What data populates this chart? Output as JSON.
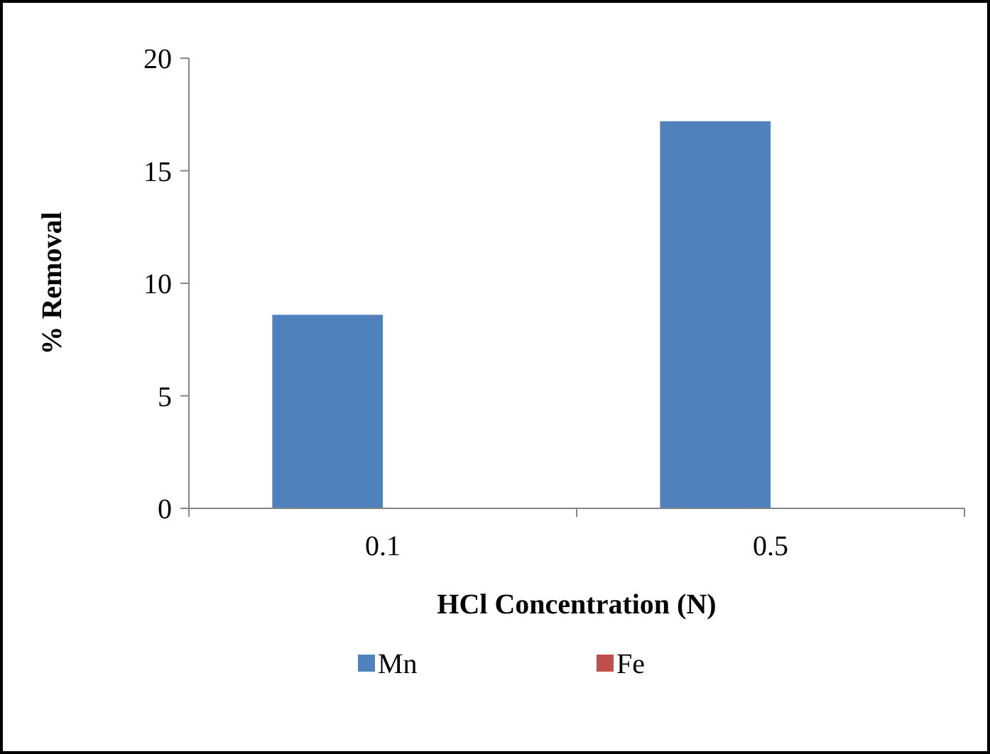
{
  "chart_data": {
    "type": "bar",
    "xlabel": "HCl Concentration (N)",
    "ylabel": "% Removal",
    "categories": [
      "0.1",
      "0.5"
    ],
    "series": [
      {
        "name": "Mn",
        "color": "#4f81bd",
        "values": [
          8.6,
          17.2
        ]
      },
      {
        "name": "Fe",
        "color": "#c0504d",
        "values": [
          0,
          0
        ]
      }
    ],
    "ylim": [
      0,
      20
    ],
    "yticks": [
      0,
      5,
      10,
      15,
      20
    ],
    "grid": false,
    "legend": "bottom"
  }
}
